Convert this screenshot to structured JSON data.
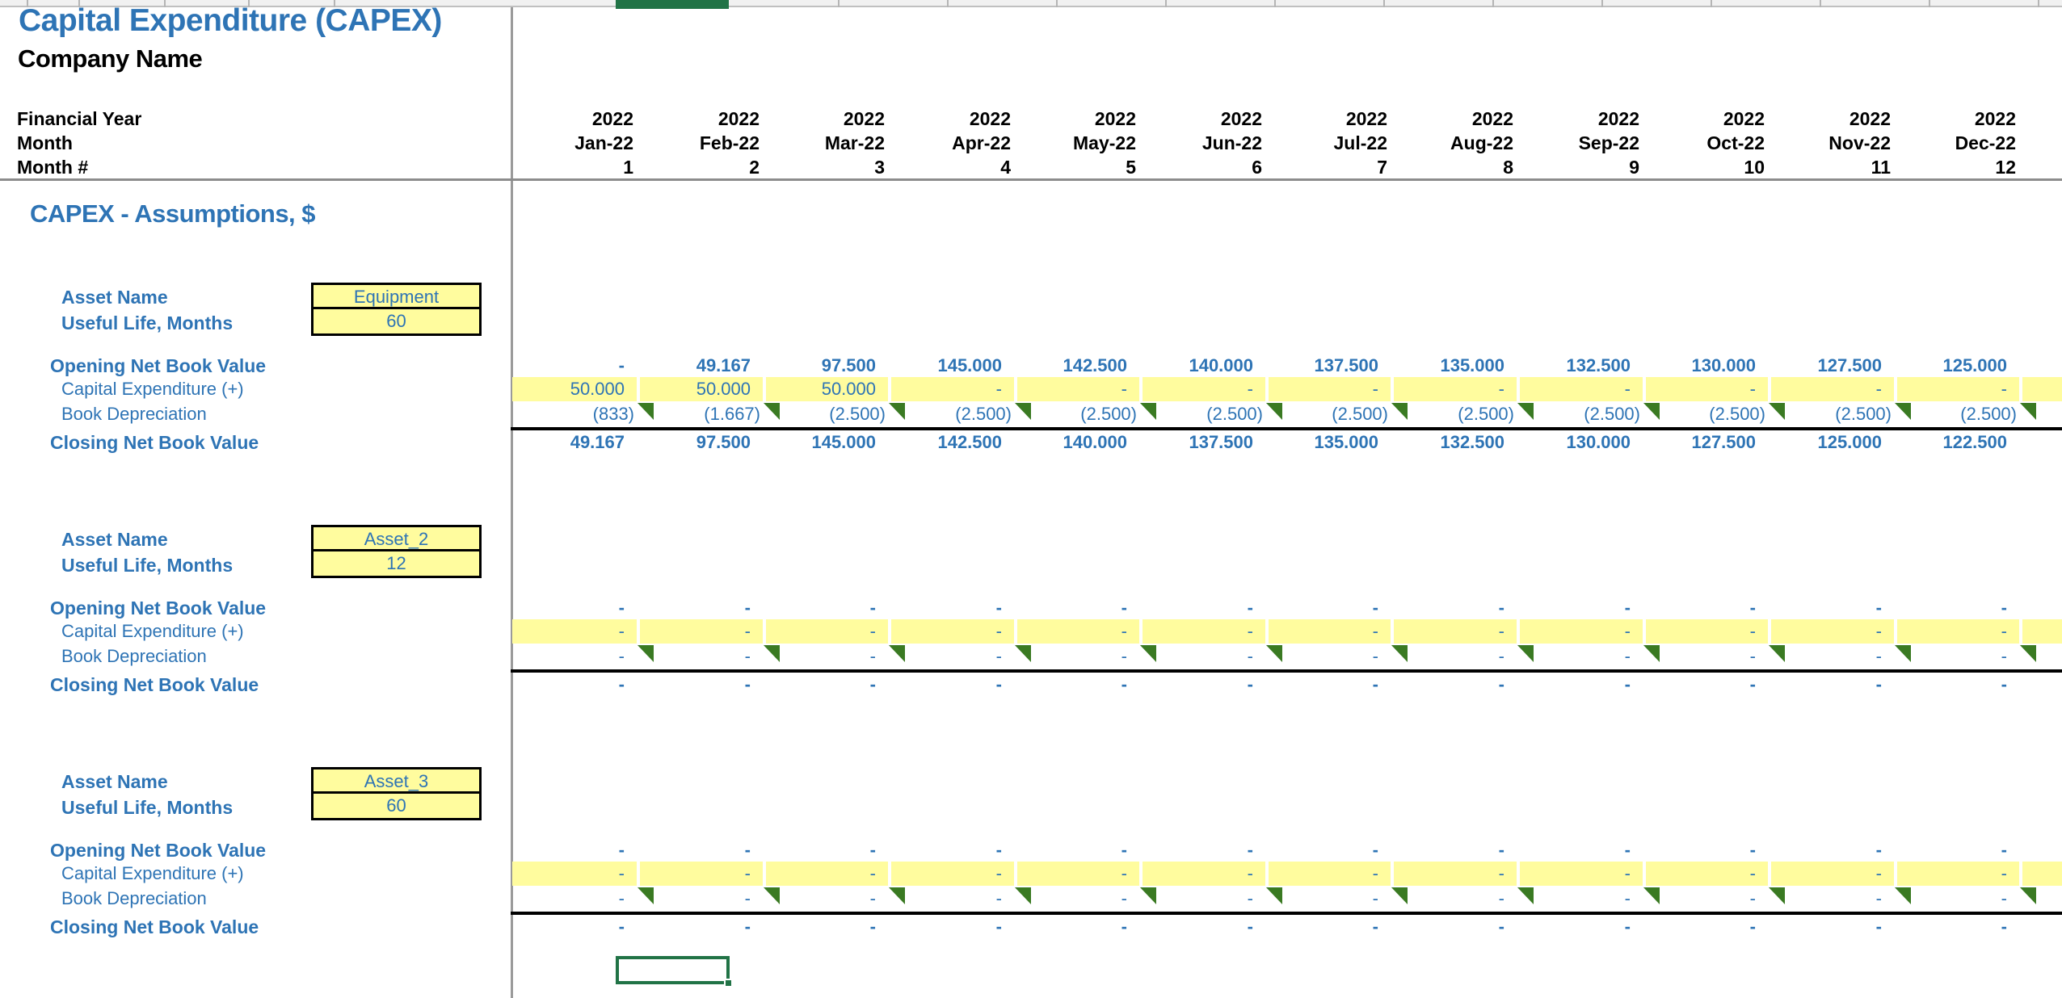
{
  "header": {
    "title": "Capital Expenditure (CAPEX)",
    "company": "Company Name",
    "financial_year_label": "Financial Year",
    "month_label": "Month",
    "month_number_label": "Month #",
    "years": [
      "2022",
      "2022",
      "2022",
      "2022",
      "2022",
      "2022",
      "2022",
      "2022",
      "2022",
      "2022",
      "2022",
      "2022"
    ],
    "months": [
      "Jan-22",
      "Feb-22",
      "Mar-22",
      "Apr-22",
      "May-22",
      "Jun-22",
      "Jul-22",
      "Aug-22",
      "Sep-22",
      "Oct-22",
      "Nov-22",
      "Dec-22"
    ],
    "month_numbers": [
      "1",
      "2",
      "3",
      "4",
      "5",
      "6",
      "7",
      "8",
      "9",
      "10",
      "11",
      "12"
    ]
  },
  "section_heading": "CAPEX - Assumptions, $",
  "labels": {
    "asset_name": "Asset Name",
    "useful_life": "Useful Life, Months",
    "opening": "Opening Net Book Value",
    "capex": "Capital Expenditure (+)",
    "depreciation": "Book Depreciation",
    "closing": "Closing Net Book Value"
  },
  "assets": [
    {
      "name": "Equipment",
      "useful_life": "60",
      "opening": [
        "-",
        "49.167",
        "97.500",
        "145.000",
        "142.500",
        "140.000",
        "137.500",
        "135.000",
        "132.500",
        "130.000",
        "127.500",
        "125.000"
      ],
      "capital_expenditure": [
        "50.000",
        "50.000",
        "50.000",
        "-",
        "-",
        "-",
        "-",
        "-",
        "-",
        "-",
        "-",
        "-"
      ],
      "book_depreciation": [
        "(833)",
        "(1.667)",
        "(2.500)",
        "(2.500)",
        "(2.500)",
        "(2.500)",
        "(2.500)",
        "(2.500)",
        "(2.500)",
        "(2.500)",
        "(2.500)",
        "(2.500)"
      ],
      "closing": [
        "49.167",
        "97.500",
        "145.000",
        "142.500",
        "140.000",
        "137.500",
        "135.000",
        "132.500",
        "130.000",
        "127.500",
        "125.000",
        "122.500"
      ]
    },
    {
      "name": "Asset_2",
      "useful_life": "12",
      "opening": [
        "-",
        "-",
        "-",
        "-",
        "-",
        "-",
        "-",
        "-",
        "-",
        "-",
        "-",
        "-"
      ],
      "capital_expenditure": [
        "-",
        "-",
        "-",
        "-",
        "-",
        "-",
        "-",
        "-",
        "-",
        "-",
        "-",
        "-"
      ],
      "book_depreciation": [
        "-",
        "-",
        "-",
        "-",
        "-",
        "-",
        "-",
        "-",
        "-",
        "-",
        "-",
        "-"
      ],
      "closing": [
        "-",
        "-",
        "-",
        "-",
        "-",
        "-",
        "-",
        "-",
        "-",
        "-",
        "-",
        "-"
      ]
    },
    {
      "name": "Asset_3",
      "useful_life": "60",
      "opening": [
        "-",
        "-",
        "-",
        "-",
        "-",
        "-",
        "-",
        "-",
        "-",
        "-",
        "-",
        "-"
      ],
      "capital_expenditure": [
        "-",
        "-",
        "-",
        "-",
        "-",
        "-",
        "-",
        "-",
        "-",
        "-",
        "-",
        "-"
      ],
      "book_depreciation": [
        "-",
        "-",
        "-",
        "-",
        "-",
        "-",
        "-",
        "-",
        "-",
        "-",
        "-",
        "-"
      ],
      "closing": [
        "-",
        "-",
        "-",
        "-",
        "-",
        "-",
        "-",
        "-",
        "-",
        "-",
        "-",
        "-"
      ]
    }
  ],
  "colors": {
    "accent_blue": "#2E74B5",
    "input_yellow": "#FFFC9E",
    "comment_green": "#3A7A22",
    "selection_green": "#217346"
  }
}
